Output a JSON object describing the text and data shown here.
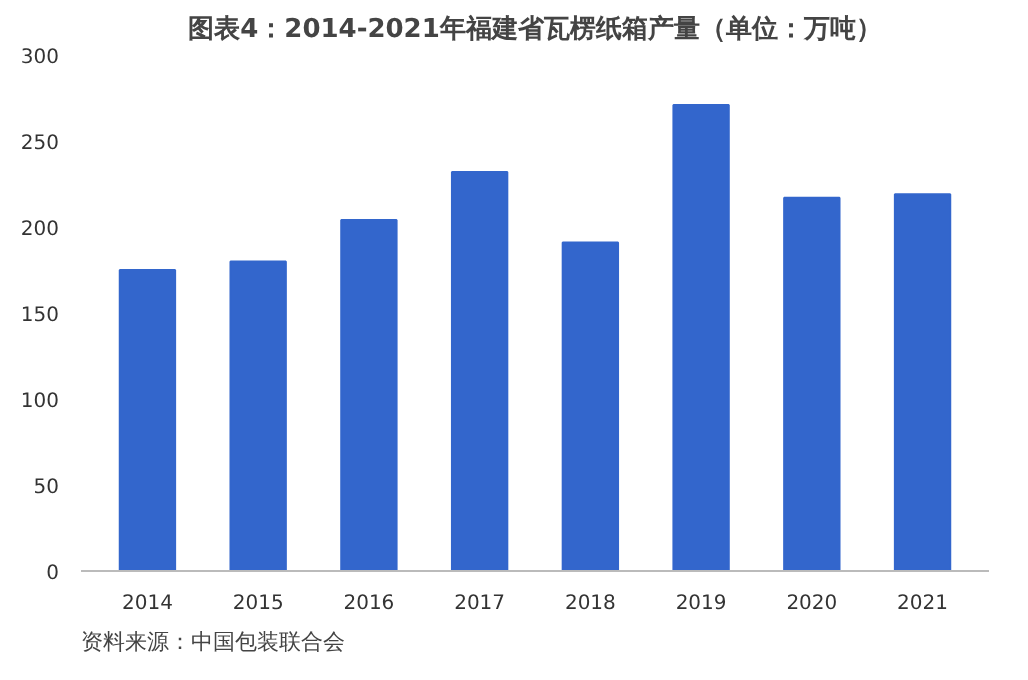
{
  "chart_data": {
    "type": "bar",
    "title": "图表4：2014-2021年福建省瓦楞纸箱产量（单位：万吨）",
    "categories": [
      "2014",
      "2015",
      "2016",
      "2017",
      "2018",
      "2019",
      "2020",
      "2021"
    ],
    "values": [
      175,
      180,
      204,
      232,
      191,
      271,
      217,
      219
    ],
    "color": "#3366cc",
    "ylim": [
      0,
      300
    ],
    "yticks": [
      0,
      50,
      100,
      150,
      200,
      250,
      300
    ],
    "grid": false,
    "annotations": [
      "资料来源：中国包装联合会"
    ]
  }
}
